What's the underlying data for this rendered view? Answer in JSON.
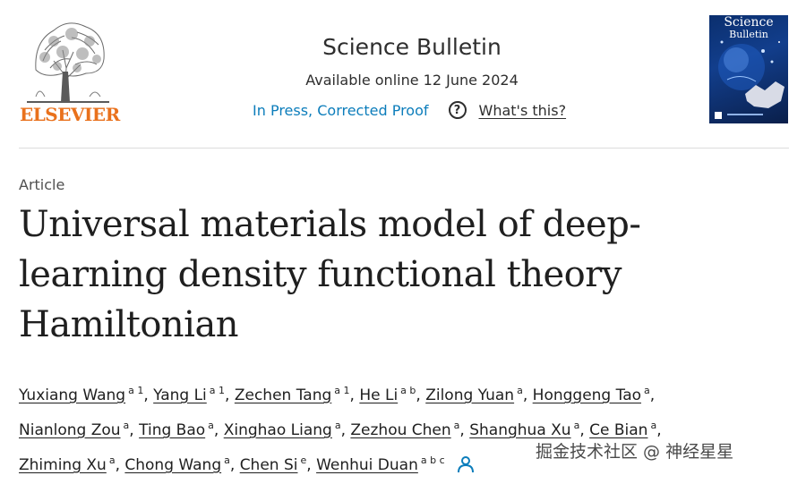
{
  "header": {
    "publisher_logo": "ELSEVIER",
    "journal_name": "Science Bulletin",
    "available_online": "Available online 12 June 2024",
    "status_link": "In Press, Corrected Proof",
    "help_icon": "question-circle-icon",
    "help_link": "What's this?",
    "cover_title_line1": "Science",
    "cover_title_line2": "Bulletin"
  },
  "article": {
    "type": "Article",
    "title_lines": [
      "Universal materials model of deep-",
      "learning density functional theory",
      "Hamiltonian"
    ]
  },
  "authors": [
    {
      "name": "Yuxiang Wang",
      "aff": "a 1",
      "sep": ","
    },
    {
      "name": "Yang Li",
      "aff": "a 1",
      "sep": ","
    },
    {
      "name": "Zechen Tang",
      "aff": "a 1",
      "sep": ","
    },
    {
      "name": "He Li",
      "aff": "a b",
      "sep": ","
    },
    {
      "name": "Zilong Yuan",
      "aff": "a",
      "sep": ","
    },
    {
      "name": "Honggeng Tao",
      "aff": "a",
      "sep": ","
    },
    {
      "name": "Nianlong Zou",
      "aff": "a",
      "sep": ","
    },
    {
      "name": "Ting Bao",
      "aff": "a",
      "sep": ","
    },
    {
      "name": "Xinghao Liang",
      "aff": "a",
      "sep": ","
    },
    {
      "name": "Zezhou Chen",
      "aff": "a",
      "sep": ","
    },
    {
      "name": "Shanghua Xu",
      "aff": "a",
      "sep": ","
    },
    {
      "name": "Ce Bian",
      "aff": "a",
      "sep": ","
    },
    {
      "name": "Zhiming Xu",
      "aff": "a",
      "sep": ","
    },
    {
      "name": "Chong Wang",
      "aff": "a",
      "sep": ","
    },
    {
      "name": "Chen Si",
      "aff": "e",
      "sep": ","
    },
    {
      "name": "Wenhui Duan",
      "aff": "a b c",
      "sep": ""
    }
  ],
  "corresponding_icon": "person-icon",
  "watermark": "掘金技术社区 @ 神经星星",
  "colors": {
    "elsevier_orange": "#e9711c",
    "link_blue": "#0c7dbb",
    "text": "#1f1f1f"
  }
}
